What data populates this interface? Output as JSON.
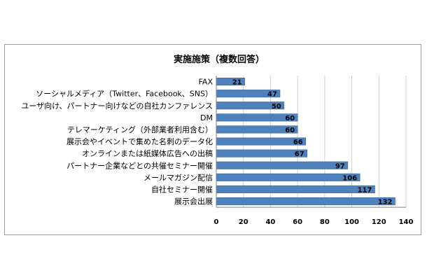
{
  "chart_data": {
    "type": "bar",
    "orientation": "horizontal",
    "title": "実施施策（複数回答）",
    "categories": [
      "FAX",
      "ソーシャルメディア（Twitter、Facebook、SNS）",
      "ユーザ向け、パートナー向けなどの自社カンファレンス",
      "DM",
      "テレマーケティング（外部業者利用含む）",
      "展示会やイベントで集めた名刺のデータ化",
      "オンラインまたは紙媒体広告への出稿",
      "パートナー企業などとの共催セミナー開催",
      "メールマガジン配信",
      "自社セミナー開催",
      "展示会出展"
    ],
    "values": [
      21,
      47,
      50,
      60,
      60,
      66,
      67,
      97,
      106,
      117,
      132
    ],
    "xlim": [
      0,
      140
    ],
    "xticks": [
      0,
      20,
      40,
      60,
      80,
      100,
      120,
      140
    ],
    "grid": true,
    "legend": "none",
    "bar_color": "#4f81bd"
  }
}
